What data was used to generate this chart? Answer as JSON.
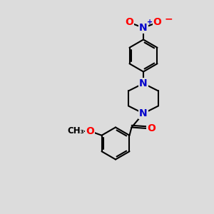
{
  "background_color": "#dcdcdc",
  "bond_color": "#000000",
  "nitrogen_color": "#0000cc",
  "oxygen_color": "#ff0000",
  "line_width": 1.5,
  "figsize": [
    3.0,
    3.0
  ],
  "dpi": 100,
  "xlim": [
    0,
    10
  ],
  "ylim": [
    0,
    10
  ]
}
